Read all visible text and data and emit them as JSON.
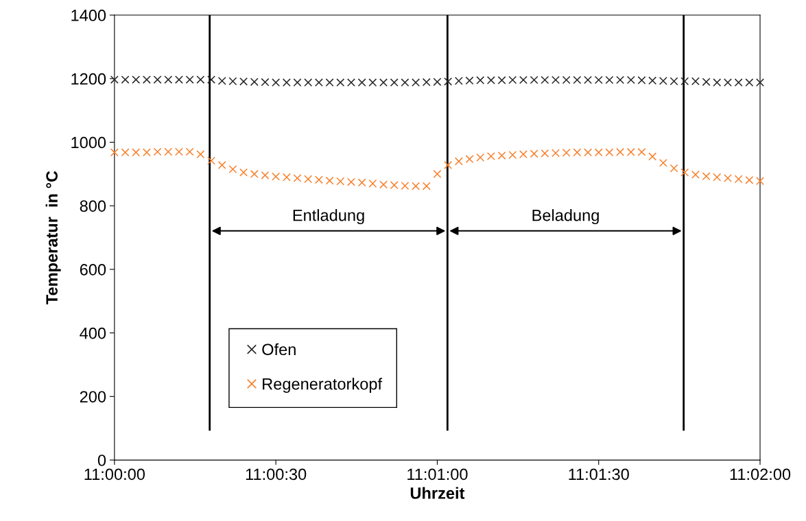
{
  "chart_data": {
    "type": "scatter",
    "xlabel": "Uhrzeit",
    "ylabel": "Temperatur  in °C",
    "x": [
      11.0,
      11.000556,
      11.001111,
      11.001667,
      11.002222,
      11.002778,
      11.003333,
      11.003889,
      11.004444,
      11.005,
      11.005556,
      11.006111,
      11.006667,
      11.007222,
      11.007778,
      11.008333,
      11.008889,
      11.009444,
      11.01,
      11.010556,
      11.011111,
      11.011667,
      11.012222,
      11.012778,
      11.013333,
      11.013889,
      11.014444,
      11.015,
      11.015556,
      11.016111,
      11.016667,
      11.017222,
      11.017778,
      11.018333,
      11.018889,
      11.019444,
      11.02,
      11.020556,
      11.021111,
      11.021667,
      11.022222,
      11.022778,
      11.023333,
      11.023889,
      11.024444,
      11.025,
      11.025556,
      11.026111,
      11.026667,
      11.027222,
      11.027778,
      11.028333,
      11.028889,
      11.029444,
      11.03,
      11.030556,
      11.031111,
      11.031667,
      11.032222,
      11.032778,
      11.033333
    ],
    "series": [
      {
        "name": "Ofen",
        "color": "#262626",
        "values": [
          1197,
          1197,
          1197,
          1197,
          1197,
          1197,
          1197,
          1197,
          1197,
          1197,
          1193,
          1192,
          1191,
          1190,
          1189,
          1188,
          1188,
          1188,
          1188,
          1188,
          1188,
          1188,
          1188,
          1188,
          1188,
          1188,
          1188,
          1188,
          1188,
          1189,
          1190,
          1191,
          1193,
          1194,
          1195,
          1195,
          1195,
          1196,
          1196,
          1196,
          1196,
          1196,
          1196,
          1196,
          1196,
          1196,
          1196,
          1196,
          1196,
          1195,
          1194,
          1193,
          1192,
          1192,
          1192,
          1190,
          1188,
          1188,
          1188,
          1188,
          1188
        ]
      },
      {
        "name": "Regeneratorkopf",
        "color": "#f7812d",
        "values": [
          968,
          968,
          968,
          968,
          970,
          970,
          970,
          970,
          962,
          942,
          928,
          915,
          905,
          900,
          896,
          892,
          890,
          887,
          884,
          882,
          879,
          877,
          875,
          873,
          870,
          867,
          865,
          863,
          862,
          862,
          900,
          928,
          940,
          947,
          952,
          956,
          958,
          960,
          962,
          964,
          965,
          966,
          967,
          968,
          968,
          968,
          968,
          969,
          969,
          969,
          955,
          935,
          918,
          905,
          898,
          893,
          890,
          887,
          884,
          881,
          878
        ]
      }
    ],
    "marker": "cross",
    "xlim": [
      11.0,
      11.033333
    ],
    "xticks": [
      {
        "value": 11.0,
        "label": "11:00:00"
      },
      {
        "value": 11.008333,
        "label": "11:00:30"
      },
      {
        "value": 11.016667,
        "label": "11:01:00"
      },
      {
        "value": 11.025,
        "label": "11:01:30"
      },
      {
        "value": 11.033333,
        "label": "11:02:00"
      }
    ],
    "ylim": [
      0,
      1400
    ],
    "yticks": [
      0,
      200,
      400,
      600,
      800,
      1000,
      1200,
      1400
    ],
    "ref_lines": [
      {
        "axis": "x",
        "value": 11.004917,
        "color": "#000000"
      },
      {
        "axis": "x",
        "value": 11.017194,
        "color": "#000000"
      },
      {
        "axis": "x",
        "value": 11.029389,
        "color": "#000000"
      }
    ],
    "annotations": [
      "Entladung",
      "Beladung"
    ],
    "grid": false,
    "legend": "lower left"
  }
}
